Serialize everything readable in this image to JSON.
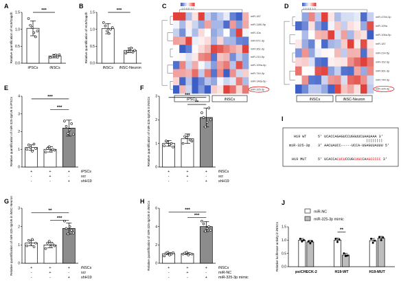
{
  "colors": {
    "bar_light": "#ffffff",
    "bar_dark": "#8c8c8c",
    "bar_gray": "#bdbdbd",
    "point": "#000000",
    "heat_red": "#e0413a",
    "heat_blue": "#3c5fc7",
    "mutant_red": "#e00000",
    "highlight": "#e00000"
  },
  "panel_labels": {
    "A": "A",
    "B": "B",
    "C": "C",
    "D": "D",
    "E": "E",
    "F": "F",
    "G": "G",
    "H": "H",
    "I": "I",
    "J": "J"
  },
  "heat_c": {
    "rows": [
      "miR-187",
      "miR-1180-5p",
      "miR-10a",
      "miR-671-3p",
      "miR-361-3p",
      "miR-210-5p",
      "miR-199a-5p",
      "miR-744-3p",
      "miR-148a-5p",
      "miR-325-3p"
    ],
    "groups": [
      "iPSCs",
      "iNSCs"
    ],
    "highlight": "miR-325-3p",
    "scale_label": "-1.0 0.0 1.0"
  },
  "heat_d": {
    "rows": [
      "miR-4784-3p",
      "miR-199a",
      "miR-106a-5p",
      "miR-187",
      "miR-214-5p",
      "miR-152-3p",
      "miR-361-3p",
      "miR-744-3p",
      "miR-325-3p"
    ],
    "groups": [
      "iNSCs",
      "iNSC-Neuron"
    ],
    "highlight": "miR-325-3p",
    "scale_label": "-1.0 0.0 1.0"
  },
  "seq": {
    "h19_wt_name": "H19 WT",
    "h19_wt_seq": "5' UCACCAGAGUCCUGGUUCUAAUAAA 3'",
    "bars": "||||||||",
    "mir_name": "miR-325-3p",
    "mir_seq": "3' AACUAUCC-----UCCA-UGAGUUAUUU 5'",
    "h19_mut_name": "H19 MUT",
    "h19_mut_prefix": "5' UCACCA",
    "h19_mut_red1": "CUCU",
    "h19_mut_mid": "CCUG",
    "h19_mut_red2": "CUGC",
    "h19_mut_mid2": "CA",
    "h19_mut_red3": "AGCCCCC",
    "h19_mut_suffix": " 3'"
  },
  "legend_j": {
    "nc": "miR-NC",
    "mimic": "miR-325-3p mimic"
  },
  "cond_labels": {
    "ipscs": "iPSCs",
    "insc": "iNSCs",
    "scr": "scr",
    "shH19": "shH19",
    "miR_NC": "miR-NC",
    "mimic": "miR-325-3p mimic",
    "plus": "+",
    "minus": "-"
  },
  "chart_data": [
    {
      "panel": "A",
      "type": "bar",
      "categories": [
        "iPSCs",
        "iNSCs"
      ],
      "values": [
        1.03,
        0.21
      ],
      "points": [
        [
          1.32,
          1.12,
          1.05,
          0.9,
          0.78,
          0.95
        ],
        [
          0.17,
          0.19,
          0.22,
          0.24,
          0.18,
          0.25
        ]
      ],
      "errors": [
        0.22,
        0.05
      ],
      "ylabel": "Relative quantification of H19/Gapdh",
      "ylim": [
        0,
        1.5
      ],
      "yticks": [
        "0.0",
        "0.5",
        "1.0",
        "1.5"
      ],
      "significance": [
        "***"
      ]
    },
    {
      "panel": "B",
      "type": "bar",
      "categories": [
        "iNSCs",
        "iNSC-Neuron"
      ],
      "values": [
        1.02,
        0.38
      ],
      "points": [
        [
          1.2,
          1.1,
          0.95,
          0.88,
          1.0,
          1.05
        ],
        [
          0.3,
          0.35,
          0.42,
          0.45,
          0.33,
          0.38
        ]
      ],
      "errors": [
        0.15,
        0.07
      ],
      "ylabel": "Relative quantification of H19/Gapdh",
      "ylim": [
        0,
        1.5
      ],
      "yticks": [
        "0.0",
        "0.5",
        "1.0",
        "1.5"
      ],
      "significance": [
        "***"
      ]
    },
    {
      "panel": "E",
      "type": "bar",
      "values": [
        1.1,
        1.0,
        2.2
      ],
      "points": [
        [
          1.0,
          1.25,
          1.1,
          0.9,
          1.3,
          1.05
        ],
        [
          0.85,
          1.05,
          1.15,
          0.9,
          1.0,
          0.95
        ],
        [
          2.6,
          2.3,
          1.9,
          2.1,
          2.45,
          1.85
        ]
      ],
      "errors": [
        0.15,
        0.15,
        0.45
      ],
      "ylabel": "Relative quantification of miR-325-3p/U6 in iPSCs",
      "ylim": [
        0,
        4
      ],
      "yticks": [
        "0",
        "1",
        "2",
        "3",
        "4"
      ],
      "significance": [
        "***",
        "***"
      ],
      "conditions": [
        [
          "+",
          "+",
          "+"
        ],
        [
          "-",
          "+",
          "-"
        ],
        [
          "-",
          "-",
          "+"
        ]
      ],
      "condition_names": [
        "iPSCs",
        "scr",
        "shH19"
      ]
    },
    {
      "panel": "F",
      "type": "bar",
      "values": [
        1.0,
        1.2,
        2.1
      ],
      "points": [
        [
          0.9,
          1.1,
          1.05,
          0.95,
          1.0,
          0.85
        ],
        [
          1.0,
          1.3,
          1.25,
          1.35,
          1.15,
          1.1
        ],
        [
          2.3,
          2.1,
          1.7,
          1.9,
          2.5,
          2.0
        ]
      ],
      "errors": [
        0.12,
        0.2,
        0.4
      ],
      "ylabel": "Relative quantification of miR-325-3p/U6 in iNSCs",
      "ylim": [
        0,
        3
      ],
      "yticks": [
        "0",
        "1",
        "2",
        "3"
      ],
      "significance": [
        "***",
        "**"
      ],
      "conditions": [
        [
          "+",
          "+",
          "+"
        ],
        [
          "-",
          "+",
          "-"
        ],
        [
          "-",
          "-",
          "+"
        ]
      ],
      "condition_names": [
        "iNSCs",
        "scr",
        "shH19"
      ]
    },
    {
      "panel": "G",
      "type": "bar",
      "values": [
        1.1,
        1.0,
        1.9
      ],
      "points": [
        [
          0.95,
          1.25,
          1.1,
          1.3,
          0.9,
          1.1
        ],
        [
          0.8,
          1.1,
          1.2,
          0.9,
          1.05,
          0.95
        ],
        [
          2.3,
          1.9,
          1.6,
          2.0,
          1.8,
          1.65
        ]
      ],
      "errors": [
        0.15,
        0.15,
        0.3
      ],
      "ylabel": "Relative quantification of miR-325-3p/U6 in iNSC-Neuron",
      "ylim": [
        0,
        3
      ],
      "yticks": [
        "0",
        "1",
        "2",
        "3"
      ],
      "significance": [
        "**",
        "***"
      ],
      "conditions": [
        [
          "+",
          "+",
          "+"
        ],
        [
          "-",
          "+",
          "-"
        ],
        [
          "-",
          "-",
          "+"
        ]
      ],
      "condition_names": [
        "iNSCs",
        "scr",
        "shH19"
      ]
    },
    {
      "panel": "H",
      "type": "bar",
      "values": [
        1.05,
        1.05,
        4.0
      ],
      "points": [
        [
          0.8,
          1.1,
          1.2,
          0.9,
          1.0,
          1.15
        ],
        [
          1.0,
          1.1,
          1.2,
          0.9,
          1.05,
          1.0
        ],
        [
          4.6,
          4.3,
          3.5,
          3.8,
          4.0,
          3.6
        ]
      ],
      "errors": [
        0.12,
        0.1,
        0.55
      ],
      "ylabel": "Relative quantification of miR-325-3p/U6 in iNSCs",
      "ylim": [
        0,
        6
      ],
      "yticks": [
        "0",
        "2",
        "4",
        "6"
      ],
      "significance": [
        "***",
        "***"
      ],
      "conditions": [
        [
          "+",
          "+",
          "+"
        ],
        [
          "-",
          "+",
          "-"
        ],
        [
          "-",
          "-",
          "+"
        ]
      ],
      "condition_names": [
        "iNSCs",
        "miR-NC",
        "miR-325-3p mimic"
      ]
    },
    {
      "panel": "J",
      "type": "bar",
      "categories": [
        "psiCHECK-2",
        "H19-WT",
        "H19-MUT"
      ],
      "series": [
        {
          "name": "miR-NC",
          "values": [
            1.0,
            1.0,
            0.98
          ],
          "points": [
            [
              1.05,
              0.95,
              1.0
            ],
            [
              1.05,
              0.93,
              1.02
            ],
            [
              1.05,
              0.9,
              0.98
            ]
          ],
          "errors": [
            0.06,
            0.08,
            0.08
          ]
        },
        {
          "name": "miR-325-3p mimic",
          "values": [
            0.93,
            0.44,
            1.07
          ],
          "points": [
            [
              0.95,
              0.88,
              0.96
            ],
            [
              0.5,
              0.4,
              0.42
            ],
            [
              1.12,
              1.0,
              1.1
            ]
          ],
          "errors": [
            0.06,
            0.06,
            0.07
          ]
        }
      ],
      "ylabel": "Relative luciferase activity in iNSCs",
      "ylim": [
        0,
        1.5
      ],
      "yticks": [
        "0.0",
        "0.5",
        "1.0",
        "1.5"
      ],
      "significance": [
        "**"
      ]
    }
  ]
}
